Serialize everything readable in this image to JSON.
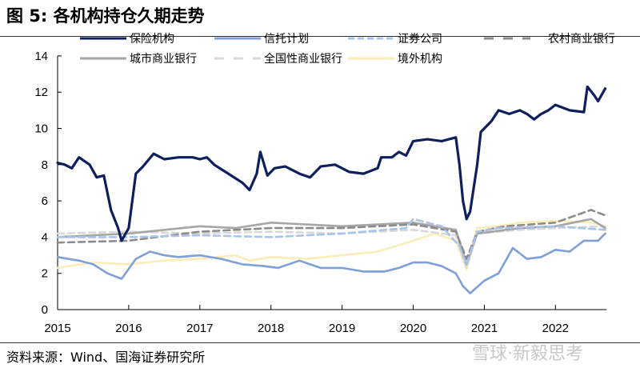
{
  "title": "图 5:  各机构持仓久期走势",
  "source": "资料来源：Wind、国海证券研究所",
  "watermark": "雪球·新毅思考",
  "chart_data": {
    "type": "line",
    "title": "",
    "xlabel": "",
    "ylabel": "",
    "xlim": [
      2015,
      2022.72
    ],
    "ylim": [
      0,
      14
    ],
    "x_ticks": [
      "2015",
      "2016",
      "2017",
      "2018",
      "2019",
      "2020",
      "2021",
      "2022"
    ],
    "y_ticks": [
      "0",
      "2",
      "4",
      "6",
      "8",
      "10",
      "12",
      "14"
    ],
    "grid": false,
    "legend_placement": "top",
    "series": [
      {
        "name": "保险机构",
        "color": "#0e1f5e",
        "dash": false,
        "width": 3.2,
        "points": [
          [
            2015.0,
            8.1
          ],
          [
            2015.1,
            8.0
          ],
          [
            2015.2,
            7.8
          ],
          [
            2015.3,
            8.4
          ],
          [
            2015.45,
            8.0
          ],
          [
            2015.55,
            7.3
          ],
          [
            2015.65,
            7.4
          ],
          [
            2015.75,
            5.5
          ],
          [
            2015.85,
            4.5
          ],
          [
            2015.9,
            3.8
          ],
          [
            2016.0,
            4.5
          ],
          [
            2016.1,
            7.5
          ],
          [
            2016.2,
            7.9
          ],
          [
            2016.35,
            8.6
          ],
          [
            2016.5,
            8.3
          ],
          [
            2016.7,
            8.4
          ],
          [
            2016.9,
            8.4
          ],
          [
            2017.0,
            8.3
          ],
          [
            2017.1,
            8.4
          ],
          [
            2017.2,
            8.0
          ],
          [
            2017.4,
            7.5
          ],
          [
            2017.6,
            7.0
          ],
          [
            2017.7,
            6.6
          ],
          [
            2017.8,
            7.5
          ],
          [
            2017.85,
            8.7
          ],
          [
            2017.95,
            7.4
          ],
          [
            2018.05,
            7.8
          ],
          [
            2018.2,
            7.9
          ],
          [
            2018.4,
            7.5
          ],
          [
            2018.55,
            7.3
          ],
          [
            2018.7,
            7.9
          ],
          [
            2018.9,
            8.0
          ],
          [
            2019.0,
            7.8
          ],
          [
            2019.1,
            7.6
          ],
          [
            2019.3,
            7.5
          ],
          [
            2019.5,
            7.8
          ],
          [
            2019.55,
            8.4
          ],
          [
            2019.7,
            8.4
          ],
          [
            2019.8,
            8.7
          ],
          [
            2019.9,
            8.5
          ],
          [
            2020.0,
            9.3
          ],
          [
            2020.2,
            9.4
          ],
          [
            2020.4,
            9.3
          ],
          [
            2020.5,
            9.4
          ],
          [
            2020.6,
            9.5
          ],
          [
            2020.65,
            8.0
          ],
          [
            2020.7,
            6.0
          ],
          [
            2020.75,
            5.0
          ],
          [
            2020.8,
            5.4
          ],
          [
            2020.9,
            8.0
          ],
          [
            2020.95,
            9.8
          ],
          [
            2021.1,
            10.4
          ],
          [
            2021.2,
            11.0
          ],
          [
            2021.35,
            10.8
          ],
          [
            2021.5,
            11.0
          ],
          [
            2021.6,
            10.8
          ],
          [
            2021.7,
            10.5
          ],
          [
            2021.8,
            10.8
          ],
          [
            2021.9,
            11.0
          ],
          [
            2022.0,
            11.3
          ],
          [
            2022.2,
            11.0
          ],
          [
            2022.4,
            10.9
          ],
          [
            2022.45,
            12.3
          ],
          [
            2022.55,
            11.8
          ],
          [
            2022.6,
            11.5
          ],
          [
            2022.7,
            12.2
          ]
        ]
      },
      {
        "name": "信托计划",
        "color": "#7f9fd8",
        "dash": false,
        "width": 2.6,
        "points": [
          [
            2015.0,
            2.9
          ],
          [
            2015.3,
            2.7
          ],
          [
            2015.5,
            2.5
          ],
          [
            2015.7,
            2.0
          ],
          [
            2015.9,
            1.7
          ],
          [
            2016.1,
            2.8
          ],
          [
            2016.3,
            3.2
          ],
          [
            2016.5,
            3.0
          ],
          [
            2016.7,
            2.9
          ],
          [
            2017.0,
            3.0
          ],
          [
            2017.3,
            2.8
          ],
          [
            2017.6,
            2.5
          ],
          [
            2017.9,
            2.4
          ],
          [
            2018.1,
            2.3
          ],
          [
            2018.4,
            2.7
          ],
          [
            2018.7,
            2.3
          ],
          [
            2019.0,
            2.3
          ],
          [
            2019.3,
            2.1
          ],
          [
            2019.6,
            2.1
          ],
          [
            2019.8,
            2.3
          ],
          [
            2020.0,
            2.6
          ],
          [
            2020.2,
            2.6
          ],
          [
            2020.4,
            2.4
          ],
          [
            2020.6,
            2.0
          ],
          [
            2020.7,
            1.3
          ],
          [
            2020.8,
            0.9
          ],
          [
            2021.0,
            1.6
          ],
          [
            2021.2,
            2.0
          ],
          [
            2021.4,
            3.4
          ],
          [
            2021.6,
            2.8
          ],
          [
            2021.8,
            2.9
          ],
          [
            2022.0,
            3.3
          ],
          [
            2022.2,
            3.2
          ],
          [
            2022.4,
            3.8
          ],
          [
            2022.6,
            3.8
          ],
          [
            2022.7,
            4.2
          ]
        ]
      },
      {
        "name": "证券公司",
        "color": "#a9c4ec",
        "dash": true,
        "width": 2.6,
        "points": [
          [
            2015.0,
            4.0
          ],
          [
            2016.0,
            4.0
          ],
          [
            2017.0,
            4.1
          ],
          [
            2018.0,
            4.0
          ],
          [
            2019.0,
            4.2
          ],
          [
            2019.9,
            4.5
          ],
          [
            2020.0,
            5.0
          ],
          [
            2020.4,
            4.6
          ],
          [
            2020.65,
            3.5
          ],
          [
            2020.75,
            2.5
          ],
          [
            2020.9,
            4.3
          ],
          [
            2021.2,
            4.5
          ],
          [
            2022.0,
            4.6
          ],
          [
            2022.7,
            4.4
          ]
        ]
      },
      {
        "name": "农村商业银行",
        "color": "#8c8c8c",
        "dash": true,
        "width": 2.6,
        "points": [
          [
            2015.0,
            3.7
          ],
          [
            2016.0,
            3.8
          ],
          [
            2017.0,
            4.3
          ],
          [
            2018.0,
            4.5
          ],
          [
            2019.0,
            4.5
          ],
          [
            2020.0,
            4.7
          ],
          [
            2020.6,
            4.3
          ],
          [
            2020.75,
            2.8
          ],
          [
            2020.9,
            4.3
          ],
          [
            2021.3,
            4.6
          ],
          [
            2022.0,
            4.8
          ],
          [
            2022.5,
            5.5
          ],
          [
            2022.7,
            5.2
          ]
        ]
      },
      {
        "name": "城市商业银行",
        "color": "#a6a6a6",
        "dash": false,
        "width": 2.6,
        "points": [
          [
            2015.0,
            4.0
          ],
          [
            2016.0,
            4.2
          ],
          [
            2017.0,
            4.6
          ],
          [
            2017.5,
            4.5
          ],
          [
            2018.0,
            4.8
          ],
          [
            2019.0,
            4.6
          ],
          [
            2020.0,
            4.8
          ],
          [
            2020.6,
            4.4
          ],
          [
            2020.75,
            2.5
          ],
          [
            2020.9,
            4.2
          ],
          [
            2021.5,
            4.5
          ],
          [
            2022.0,
            4.6
          ],
          [
            2022.5,
            5.0
          ],
          [
            2022.7,
            4.5
          ]
        ]
      },
      {
        "name": "全国性商业银行",
        "color": "#d9d9d9",
        "dash": true,
        "width": 2.6,
        "points": [
          [
            2015.0,
            4.2
          ],
          [
            2016.0,
            4.3
          ],
          [
            2017.0,
            4.2
          ],
          [
            2018.0,
            4.3
          ],
          [
            2019.0,
            4.2
          ],
          [
            2020.0,
            4.4
          ],
          [
            2020.6,
            4.1
          ],
          [
            2020.75,
            2.3
          ],
          [
            2020.9,
            4.2
          ],
          [
            2021.5,
            4.4
          ],
          [
            2022.0,
            4.5
          ],
          [
            2022.7,
            4.6
          ]
        ]
      },
      {
        "name": "境外机构",
        "color": "#fbecb8",
        "dash": false,
        "width": 2.6,
        "points": [
          [
            2015.0,
            2.3
          ],
          [
            2015.5,
            2.6
          ],
          [
            2016.0,
            2.5
          ],
          [
            2016.5,
            2.7
          ],
          [
            2017.0,
            2.8
          ],
          [
            2017.5,
            3.0
          ],
          [
            2017.7,
            2.7
          ],
          [
            2018.0,
            2.9
          ],
          [
            2018.5,
            2.8
          ],
          [
            2019.0,
            3.0
          ],
          [
            2019.5,
            3.2
          ],
          [
            2020.0,
            3.8
          ],
          [
            2020.3,
            4.2
          ],
          [
            2020.6,
            3.8
          ],
          [
            2020.75,
            2.2
          ],
          [
            2020.9,
            4.5
          ],
          [
            2021.2,
            4.6
          ],
          [
            2021.5,
            4.8
          ],
          [
            2022.0,
            4.9
          ],
          [
            2022.5,
            4.8
          ],
          [
            2022.7,
            4.6
          ]
        ]
      }
    ]
  }
}
